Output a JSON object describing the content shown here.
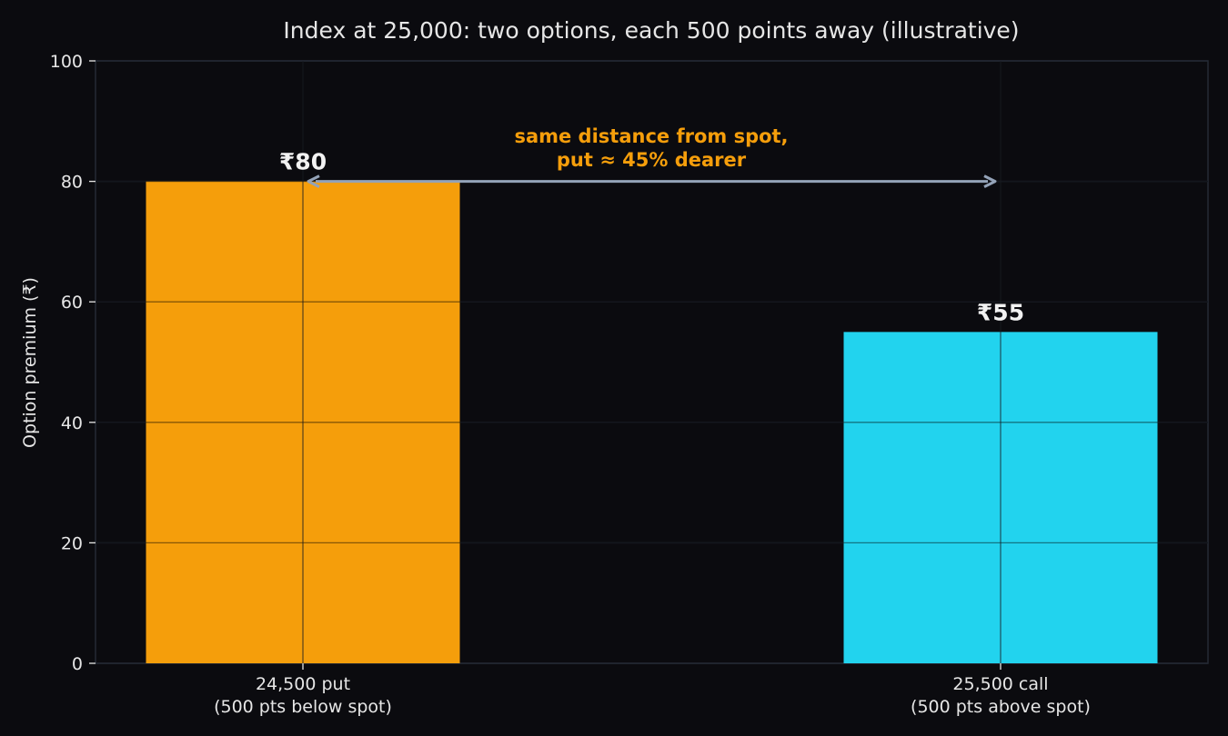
{
  "chart_data": {
    "type": "bar",
    "title": "Index at 25,000: two options, each 500 points away (illustrative)",
    "ylabel": "Option premium (₹)",
    "xlabel": "",
    "ylim": [
      0,
      100
    ],
    "yticks": [
      0,
      20,
      40,
      60,
      80,
      100
    ],
    "grid": true,
    "categories": [
      [
        "24,500 put",
        "(500 pts below spot)"
      ],
      [
        "25,500 call",
        "(500 pts above spot)"
      ]
    ],
    "values": [
      80,
      55
    ],
    "data_labels": [
      "₹80",
      "₹55"
    ],
    "colors": [
      "#f59e0b",
      "#22d3ee"
    ],
    "annotation": {
      "lines": [
        "same distance from spot,",
        "put ≈ 45% dearer"
      ],
      "color": "#f59e0b",
      "arrow": {
        "from_category": 0,
        "to_category": 1,
        "y": 80
      }
    }
  }
}
